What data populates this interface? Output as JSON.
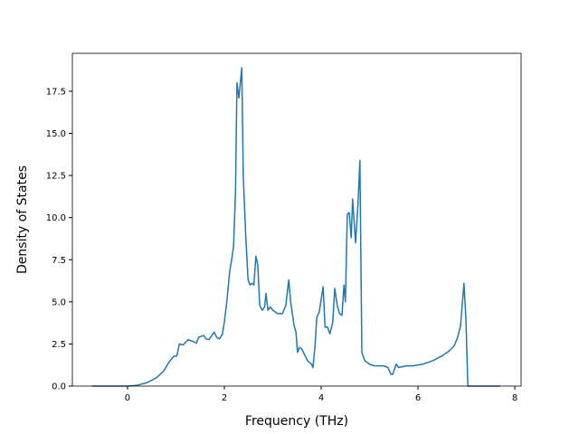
{
  "chart_data": {
    "type": "line",
    "xlabel": "Frequency (THz)",
    "ylabel": "Density of States",
    "xlim": [
      -1.14,
      8.13
    ],
    "ylim": [
      0,
      19.75
    ],
    "xticks": [
      0,
      2,
      4,
      6,
      8
    ],
    "yticks": [
      {
        "value": 0,
        "label": "0.0"
      },
      {
        "value": 2.5,
        "label": "2.5"
      },
      {
        "value": 5,
        "label": "5.0"
      },
      {
        "value": 7.5,
        "label": "7.5"
      },
      {
        "value": 10,
        "label": "10.0"
      },
      {
        "value": 12.5,
        "label": "12.5"
      },
      {
        "value": 15,
        "label": "15.0"
      },
      {
        "value": 17.5,
        "label": "17.5"
      }
    ],
    "grid": false,
    "x": [
      -0.73,
      0,
      0.2,
      0.4,
      0.6,
      0.75,
      0.85,
      0.95,
      1.02,
      1.07,
      1.15,
      1.25,
      1.35,
      1.42,
      1.47,
      1.57,
      1.62,
      1.68,
      1.74,
      1.79,
      1.84,
      1.9,
      1.96,
      2.0,
      2.05,
      2.11,
      2.15,
      2.19,
      2.23,
      2.26,
      2.3,
      2.36,
      2.39,
      2.44,
      2.49,
      2.53,
      2.57,
      2.61,
      2.65,
      2.69,
      2.73,
      2.78,
      2.83,
      2.86,
      2.9,
      2.95,
      3.0,
      3.1,
      3.2,
      3.27,
      3.33,
      3.37,
      3.44,
      3.48,
      3.51,
      3.55,
      3.6,
      3.65,
      3.72,
      3.8,
      3.83,
      3.87,
      3.91,
      3.96,
      4.04,
      4.08,
      4.13,
      4.18,
      4.24,
      4.28,
      4.33,
      4.38,
      4.43,
      4.47,
      4.5,
      4.54,
      4.58,
      4.62,
      4.65,
      4.71,
      4.76,
      4.8,
      4.84,
      4.9,
      5.0,
      5.1,
      5.2,
      5.3,
      5.38,
      5.44,
      5.48,
      5.55,
      5.6,
      5.75,
      5.9,
      6.1,
      6.3,
      6.5,
      6.65,
      6.75,
      6.82,
      6.88,
      6.95,
      6.99,
      7.03,
      7.7
    ],
    "series": [
      {
        "name": "DOS",
        "color": "#1f77b4",
        "values": [
          0,
          0,
          0.05,
          0.2,
          0.5,
          0.9,
          1.4,
          1.75,
          1.8,
          2.5,
          2.45,
          2.75,
          2.65,
          2.55,
          2.9,
          3.0,
          2.8,
          2.75,
          3.0,
          3.2,
          2.9,
          2.8,
          3.1,
          3.8,
          5.0,
          6.8,
          7.5,
          8.3,
          11.5,
          18.0,
          17.1,
          18.9,
          12.5,
          9.0,
          6.3,
          6.0,
          6.1,
          6.0,
          7.7,
          7.2,
          4.8,
          4.5,
          4.7,
          5.5,
          4.5,
          4.7,
          4.5,
          4.3,
          4.3,
          4.8,
          6.3,
          5.0,
          3.6,
          3.2,
          2.0,
          2.3,
          2.2,
          1.9,
          1.5,
          1.3,
          1.1,
          2.3,
          4.1,
          4.4,
          5.9,
          3.5,
          3.5,
          3.1,
          3.8,
          5.8,
          4.8,
          4.3,
          4.2,
          6.0,
          5.0,
          10.2,
          10.3,
          8.8,
          11.1,
          8.5,
          10.8,
          13.4,
          2.0,
          1.5,
          1.3,
          1.2,
          1.2,
          1.2,
          1.1,
          0.7,
          0.7,
          1.3,
          1.1,
          1.2,
          1.2,
          1.3,
          1.5,
          1.8,
          2.1,
          2.4,
          2.9,
          3.6,
          6.1,
          4.0,
          0,
          0
        ]
      }
    ]
  }
}
